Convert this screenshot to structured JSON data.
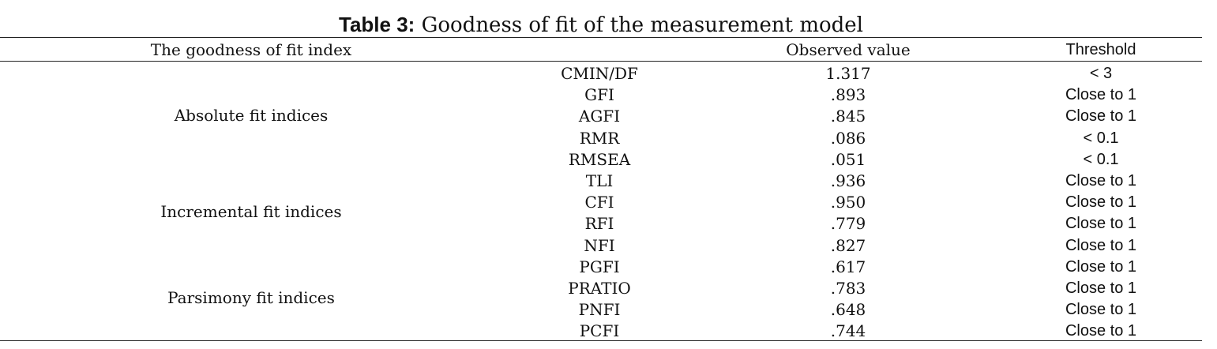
{
  "caption": {
    "label": "Table 3:",
    "text": "Goodness of fit of the measurement model"
  },
  "headers": {
    "index": "The goodness of fit index",
    "observed": "Observed value",
    "threshold": "Threshold"
  },
  "groups": [
    {
      "label": "Absolute fit indices"
    },
    {
      "label": "Incremental fit indices"
    },
    {
      "label": "Parsimony fit indices"
    }
  ],
  "rows": [
    {
      "index": "CMIN/DF",
      "observed": "1.317",
      "threshold": "< 3"
    },
    {
      "index": "GFI",
      "observed": ".893",
      "threshold": "Close to 1"
    },
    {
      "index": "AGFI",
      "observed": ".845",
      "threshold": "Close to 1"
    },
    {
      "index": "RMR",
      "observed": ".086",
      "threshold": "< 0.1"
    },
    {
      "index": "RMSEA",
      "observed": ".051",
      "threshold": "< 0.1"
    },
    {
      "index": "TLI",
      "observed": ".936",
      "threshold": "Close to 1"
    },
    {
      "index": "CFI",
      "observed": ".950",
      "threshold": "Close to 1"
    },
    {
      "index": "RFI",
      "observed": ".779",
      "threshold": "Close to 1"
    },
    {
      "index": "NFI",
      "observed": ".827",
      "threshold": "Close to 1"
    },
    {
      "index": "PGFI",
      "observed": ".617",
      "threshold": "Close to 1"
    },
    {
      "index": "PRATIO",
      "observed": ".783",
      "threshold": "Close to 1"
    },
    {
      "index": "PNFI",
      "observed": ".648",
      "threshold": "Close to 1"
    },
    {
      "index": "PCFI",
      "observed": ".744",
      "threshold": "Close to 1"
    }
  ]
}
